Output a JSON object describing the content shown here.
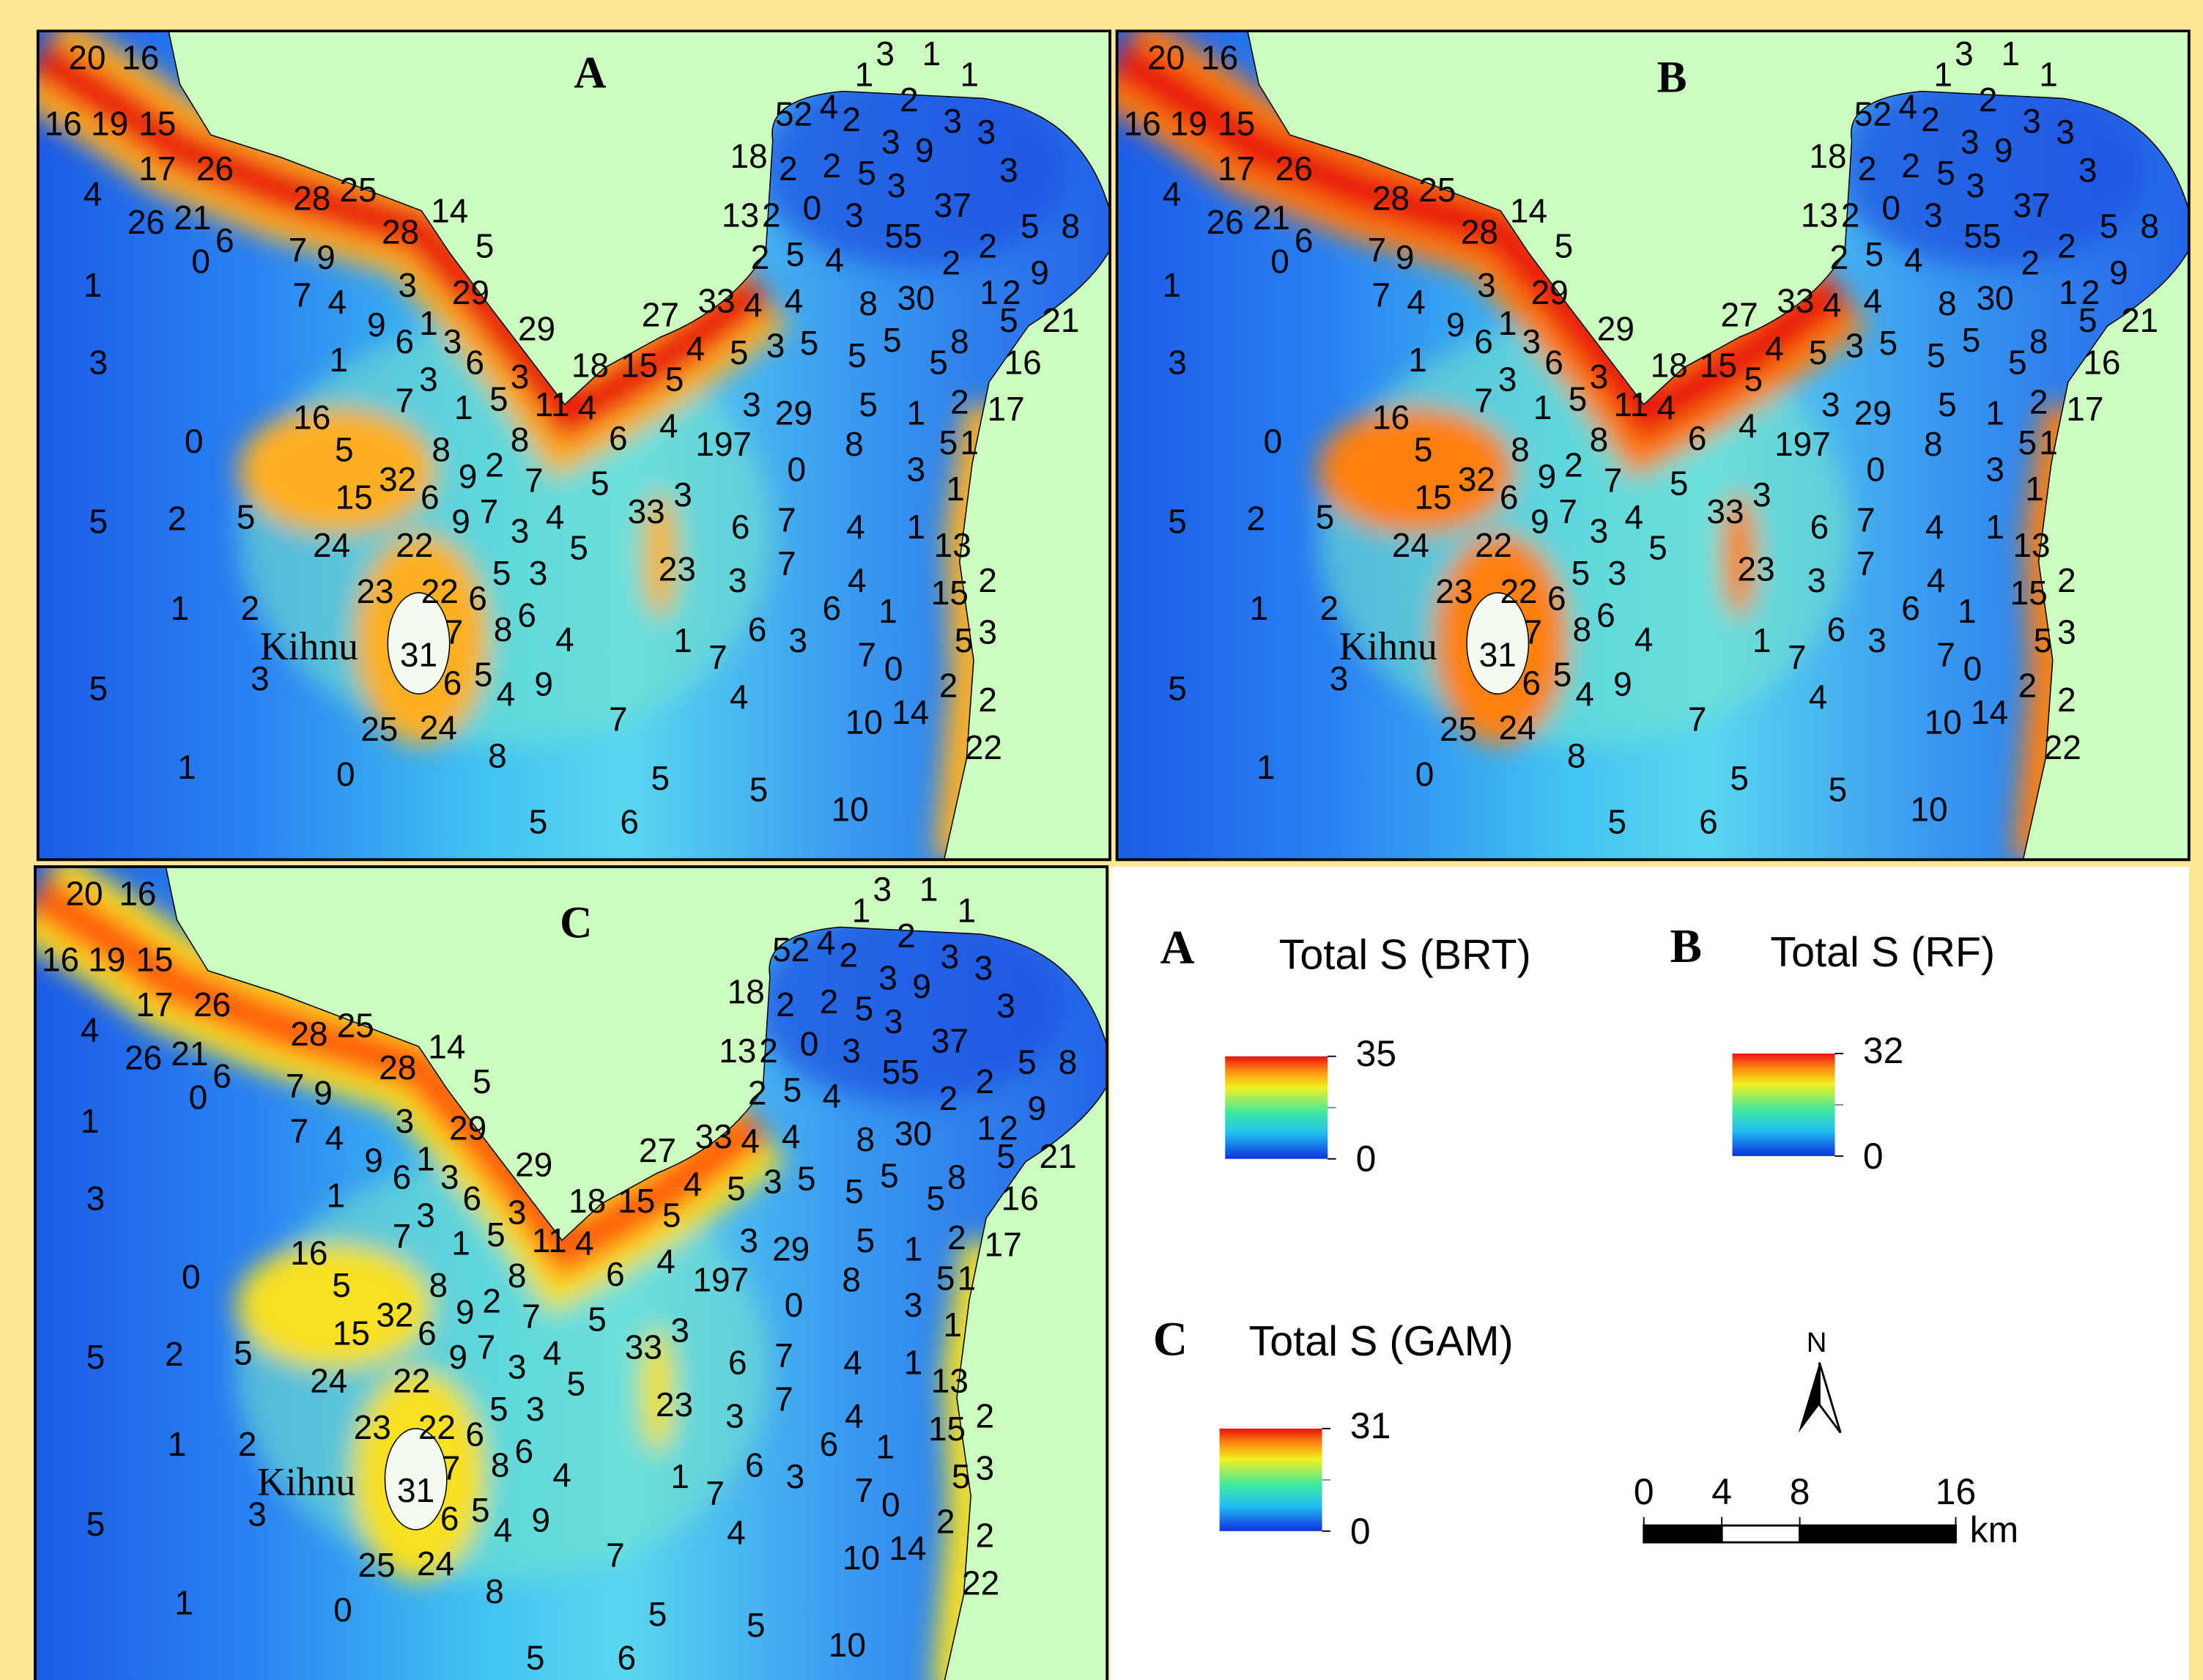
{
  "panels": [
    {
      "label": "A"
    },
    {
      "label": "B"
    },
    {
      "label": "C"
    }
  ],
  "place_name": "Kihnu",
  "site_counts": [
    20,
    16,
    16,
    19,
    15,
    17,
    26,
    4,
    28,
    25,
    14,
    26,
    21,
    0,
    6,
    7,
    9,
    28,
    5,
    1,
    3,
    29,
    7,
    4,
    9,
    6,
    1,
    3,
    6,
    29,
    3,
    1,
    7,
    3,
    1,
    5,
    3,
    11,
    4,
    18,
    15,
    5,
    4,
    27,
    33,
    4,
    5,
    4,
    3,
    5,
    8,
    30,
    1,
    2,
    9,
    5,
    21,
    5,
    5,
    5,
    8,
    16,
    4,
    3,
    29,
    5,
    1,
    2,
    17,
    0,
    16,
    5,
    8,
    9,
    2,
    8,
    6,
    197,
    8,
    0,
    3,
    5,
    1,
    32,
    15,
    6,
    7,
    5,
    1,
    5,
    2,
    5,
    9,
    7,
    3,
    4,
    33,
    3,
    6,
    7,
    4,
    1,
    24,
    22,
    5,
    13,
    23,
    3,
    7,
    4,
    2,
    5,
    3,
    23,
    22,
    6,
    15,
    1,
    2,
    8,
    6,
    6,
    1,
    4,
    1,
    7,
    6,
    3,
    5,
    3,
    31,
    7,
    7,
    0,
    3,
    5,
    6,
    5,
    4,
    9,
    2,
    2,
    4,
    7,
    10,
    14,
    25,
    24,
    22,
    8,
    1,
    0,
    5,
    5,
    10,
    5,
    6,
    1,
    3,
    1,
    1,
    52,
    4,
    2,
    2,
    3,
    3,
    3,
    9,
    3,
    18,
    2,
    2,
    5,
    3,
    37,
    13,
    2,
    0,
    3,
    55,
    5,
    8,
    2,
    5,
    4,
    2,
    2
  ],
  "legend": [
    {
      "label": "A",
      "title": "Total S (BRT)",
      "max": 35,
      "min": 0
    },
    {
      "label": "B",
      "title": "Total S (RF)",
      "max": 32,
      "min": 0
    },
    {
      "label": "C",
      "title": "Total S (GAM)",
      "max": 31,
      "min": 0
    }
  ],
  "north_label": "N",
  "scale_bar": {
    "ticks": [
      0,
      4,
      8,
      16
    ],
    "unit": "km"
  }
}
